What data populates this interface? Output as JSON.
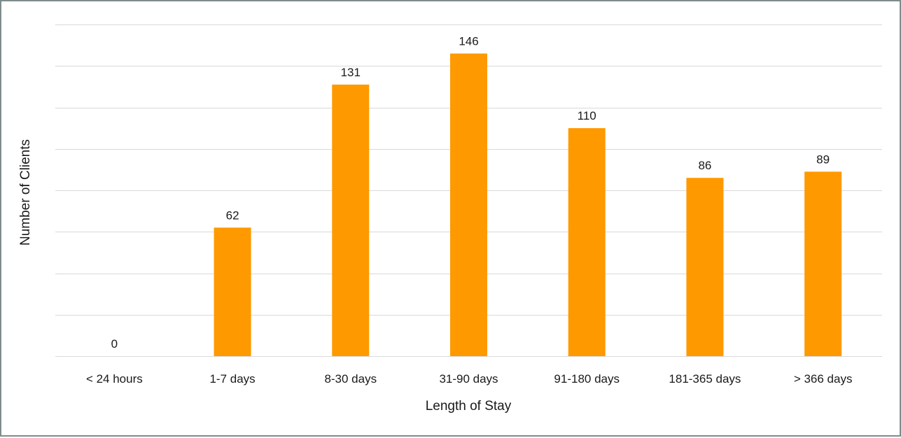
{
  "chart_data": {
    "type": "bar",
    "title": "",
    "xlabel": "Length of Stay",
    "ylabel": "Number of Clients",
    "categories": [
      "< 24 hours",
      "1-7 days",
      "8-30 days",
      "31-90 days",
      "91-180 days",
      "181-365 days",
      "> 366 days"
    ],
    "series": [
      {
        "values": [
          0,
          62,
          131,
          146,
          110,
          86,
          89
        ],
        "color": "#FF9900"
      }
    ],
    "ylim": [
      0,
      160
    ],
    "gridlines": [
      0,
      20,
      40,
      60,
      80,
      100,
      120,
      140,
      160
    ],
    "y_tick_labels_shown": false,
    "grid": true,
    "legend": "none",
    "data_labels": true
  }
}
